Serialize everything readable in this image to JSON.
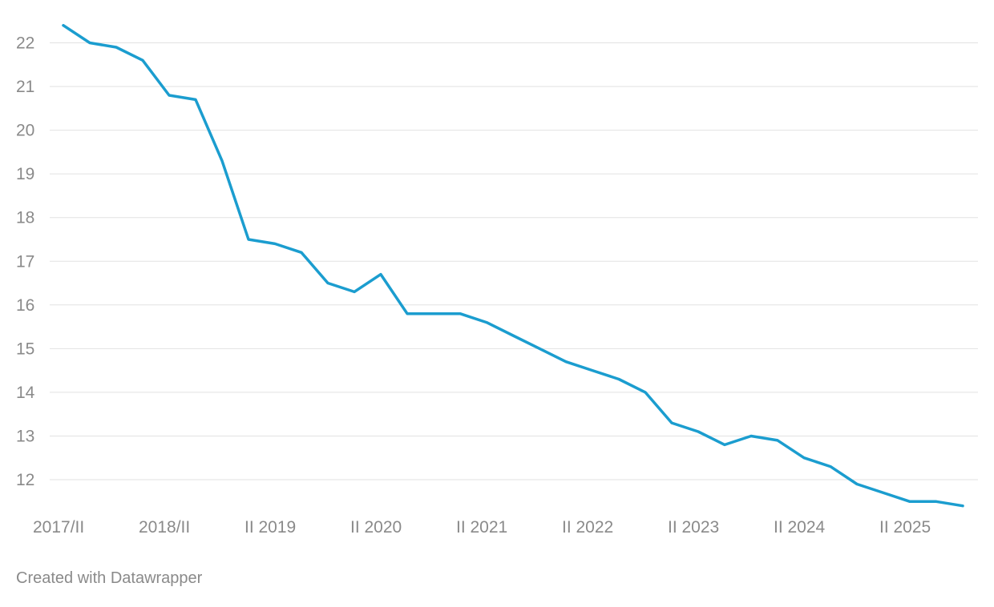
{
  "chart_data": {
    "type": "line",
    "title": "",
    "xlabel": "",
    "ylabel": "",
    "ylim": [
      11.4,
      22.4
    ],
    "y_ticks": [
      12,
      13,
      14,
      15,
      16,
      17,
      18,
      19,
      20,
      21,
      22
    ],
    "grid": "horizontal",
    "x_tick_labels": [
      {
        "label": "2017/II",
        "index": 0
      },
      {
        "label": "2018/II",
        "index": 4
      },
      {
        "label": "II 2019",
        "index": 8
      },
      {
        "label": "II 2020",
        "index": 12
      },
      {
        "label": "II 2021",
        "index": 16
      },
      {
        "label": "II 2022",
        "index": 20
      },
      {
        "label": "II 2023",
        "index": 24
      },
      {
        "label": "II 2024",
        "index": 28
      },
      {
        "label": "II 2025",
        "index": 32
      }
    ],
    "series": [
      {
        "color": "#1b9dcf",
        "values": [
          22.4,
          22.0,
          21.9,
          21.6,
          20.8,
          20.7,
          19.3,
          17.5,
          17.4,
          17.2,
          16.5,
          16.3,
          16.7,
          15.8,
          15.8,
          15.8,
          15.6,
          15.3,
          15.0,
          14.7,
          14.5,
          14.3,
          14.0,
          13.3,
          13.1,
          12.8,
          13.0,
          12.9,
          12.5,
          12.3,
          11.9,
          11.7,
          11.5,
          11.5,
          11.4
        ]
      }
    ]
  },
  "footer": {
    "credit": "Created with Datawrapper"
  }
}
